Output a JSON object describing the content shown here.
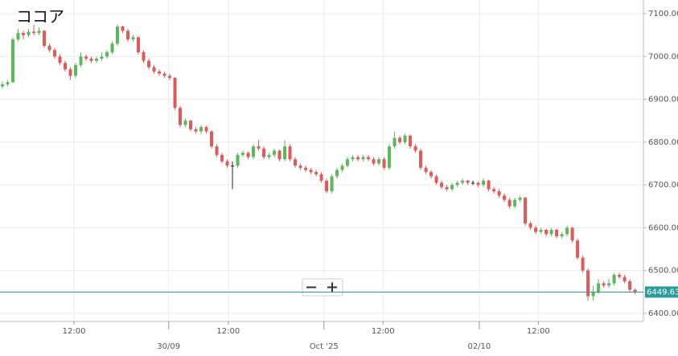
{
  "chart_data": {
    "type": "candlestick",
    "title": "ココア",
    "up_color": "#5cb85c",
    "down_color": "#e05a5a",
    "flat_color": "#222222",
    "current_color": "#2a9d9a",
    "current_price": 6449.63,
    "ylim": [
      6381,
      7132
    ],
    "yticks": [
      {
        "value": 6400,
        "label": "6400.00"
      },
      {
        "value": 6500,
        "label": "6500.00"
      },
      {
        "value": 6600,
        "label": "6600.00"
      },
      {
        "value": 6700,
        "label": "6700.00"
      },
      {
        "value": 6800,
        "label": "6800.00"
      },
      {
        "value": 6900,
        "label": "6900.00"
      },
      {
        "value": 7000,
        "label": "7000.00"
      },
      {
        "value": 7100,
        "label": "7100.00"
      }
    ],
    "xlim": [
      -0.46,
      122.6
    ],
    "xticks": [
      {
        "value": 13.7,
        "label": "12:00"
      },
      {
        "value": 31.8,
        "label": "30/09"
      },
      {
        "value": 43.2,
        "label": "12:00"
      },
      {
        "value": 61.5,
        "label": "Oct '25"
      },
      {
        "value": 72.8,
        "label": "12:00"
      },
      {
        "value": 91.2,
        "label": "02/10"
      },
      {
        "value": 102.5,
        "label": "12:00"
      }
    ],
    "grid": true,
    "ohlc": [
      [
        6930,
        6942,
        6925,
        6935
      ],
      [
        6935,
        6945,
        6930,
        6940
      ],
      [
        6940,
        7045,
        6938,
        7040
      ],
      [
        7040,
        7065,
        7035,
        7055
      ],
      [
        7055,
        7060,
        7040,
        7050
      ],
      [
        7050,
        7065,
        7045,
        7058
      ],
      [
        7058,
        7075,
        7050,
        7055
      ],
      [
        7055,
        7068,
        7050,
        7060
      ],
      [
        7060,
        7062,
        7020,
        7025
      ],
      [
        7025,
        7030,
        7010,
        7015
      ],
      [
        7015,
        7020,
        6995,
        7000
      ],
      [
        7000,
        7005,
        6980,
        6985
      ],
      [
        6985,
        6990,
        6965,
        6970
      ],
      [
        6970,
        6975,
        6945,
        6955
      ],
      [
        6955,
        6985,
        6950,
        6980
      ],
      [
        6980,
        7010,
        6975,
        7000
      ],
      [
        7000,
        7005,
        6990,
        6995
      ],
      [
        6995,
        7000,
        6985,
        6990
      ],
      [
        6990,
        7000,
        6985,
        6995
      ],
      [
        6995,
        7010,
        6990,
        7000
      ],
      [
        7000,
        7015,
        6995,
        7010
      ],
      [
        7010,
        7035,
        7005,
        7030
      ],
      [
        7030,
        7075,
        7025,
        7070
      ],
      [
        7070,
        7072,
        7055,
        7060
      ],
      [
        7060,
        7065,
        7035,
        7040
      ],
      [
        7040,
        7050,
        7035,
        7045
      ],
      [
        7045,
        7048,
        7005,
        7010
      ],
      [
        7010,
        7015,
        6985,
        6990
      ],
      [
        6990,
        6995,
        6970,
        6975
      ],
      [
        6975,
        6980,
        6960,
        6965
      ],
      [
        6965,
        6970,
        6955,
        6960
      ],
      [
        6960,
        6965,
        6950,
        6955
      ],
      [
        6955,
        6960,
        6945,
        6950
      ],
      [
        6950,
        6952,
        6875,
        6880
      ],
      [
        6880,
        6885,
        6835,
        6840
      ],
      [
        6840,
        6855,
        6835,
        6850
      ],
      [
        6850,
        6852,
        6825,
        6830
      ],
      [
        6830,
        6835,
        6820,
        6825
      ],
      [
        6825,
        6840,
        6820,
        6835
      ],
      [
        6835,
        6838,
        6820,
        6825
      ],
      [
        6825,
        6828,
        6785,
        6790
      ],
      [
        6790,
        6795,
        6765,
        6770
      ],
      [
        6770,
        6775,
        6750,
        6755
      ],
      [
        6755,
        6760,
        6740,
        6745
      ],
      [
        6745,
        6755,
        6690,
        6745
      ],
      [
        6745,
        6775,
        6740,
        6770
      ],
      [
        6770,
        6780,
        6765,
        6775
      ],
      [
        6775,
        6778,
        6760,
        6765
      ],
      [
        6765,
        6795,
        6760,
        6790
      ],
      [
        6790,
        6805,
        6780,
        6785
      ],
      [
        6785,
        6790,
        6760,
        6765
      ],
      [
        6765,
        6775,
        6760,
        6770
      ],
      [
        6770,
        6785,
        6765,
        6780
      ],
      [
        6780,
        6782,
        6755,
        6760
      ],
      [
        6760,
        6805,
        6755,
        6790
      ],
      [
        6790,
        6795,
        6755,
        6760
      ],
      [
        6760,
        6765,
        6740,
        6745
      ],
      [
        6745,
        6750,
        6735,
        6740
      ],
      [
        6740,
        6745,
        6730,
        6735
      ],
      [
        6735,
        6740,
        6725,
        6730
      ],
      [
        6730,
        6735,
        6720,
        6725
      ],
      [
        6725,
        6730,
        6705,
        6710
      ],
      [
        6710,
        6715,
        6680,
        6685
      ],
      [
        6685,
        6725,
        6680,
        6720
      ],
      [
        6720,
        6740,
        6715,
        6735
      ],
      [
        6735,
        6750,
        6730,
        6745
      ],
      [
        6745,
        6765,
        6740,
        6760
      ],
      [
        6760,
        6770,
        6755,
        6765
      ],
      [
        6765,
        6770,
        6755,
        6760
      ],
      [
        6760,
        6770,
        6755,
        6765
      ],
      [
        6765,
        6770,
        6755,
        6760
      ],
      [
        6760,
        6765,
        6745,
        6750
      ],
      [
        6750,
        6765,
        6745,
        6760
      ],
      [
        6760,
        6765,
        6735,
        6740
      ],
      [
        6740,
        6795,
        6735,
        6790
      ],
      [
        6790,
        6825,
        6785,
        6810
      ],
      [
        6810,
        6815,
        6795,
        6800
      ],
      [
        6800,
        6820,
        6795,
        6815
      ],
      [
        6815,
        6818,
        6785,
        6790
      ],
      [
        6790,
        6795,
        6775,
        6780
      ],
      [
        6780,
        6785,
        6735,
        6740
      ],
      [
        6740,
        6745,
        6725,
        6730
      ],
      [
        6730,
        6735,
        6715,
        6720
      ],
      [
        6720,
        6725,
        6700,
        6705
      ],
      [
        6705,
        6710,
        6690,
        6695
      ],
      [
        6695,
        6700,
        6685,
        6690
      ],
      [
        6690,
        6705,
        6685,
        6700
      ],
      [
        6700,
        6710,
        6695,
        6705
      ],
      [
        6705,
        6715,
        6700,
        6710
      ],
      [
        6710,
        6712,
        6700,
        6705
      ],
      [
        6705,
        6710,
        6700,
        6705
      ],
      [
        6705,
        6708,
        6695,
        6700
      ],
      [
        6700,
        6715,
        6695,
        6710
      ],
      [
        6710,
        6712,
        6685,
        6690
      ],
      [
        6690,
        6695,
        6680,
        6685
      ],
      [
        6685,
        6690,
        6670,
        6675
      ],
      [
        6675,
        6680,
        6660,
        6665
      ],
      [
        6665,
        6670,
        6645,
        6650
      ],
      [
        6650,
        6670,
        6645,
        6665
      ],
      [
        6665,
        6675,
        6660,
        6670
      ],
      [
        6670,
        6672,
        6605,
        6610
      ],
      [
        6610,
        6615,
        6595,
        6600
      ],
      [
        6600,
        6605,
        6585,
        6590
      ],
      [
        6590,
        6600,
        6585,
        6595
      ],
      [
        6595,
        6598,
        6580,
        6585
      ],
      [
        6585,
        6600,
        6580,
        6595
      ],
      [
        6595,
        6598,
        6575,
        6580
      ],
      [
        6580,
        6590,
        6575,
        6585
      ],
      [
        6585,
        6605,
        6580,
        6600
      ],
      [
        6600,
        6602,
        6565,
        6570
      ],
      [
        6570,
        6575,
        6525,
        6530
      ],
      [
        6530,
        6535,
        6495,
        6500
      ],
      [
        6500,
        6505,
        6430,
        6440
      ],
      [
        6440,
        6465,
        6430,
        6450
      ],
      [
        6450,
        6480,
        6445,
        6470
      ],
      [
        6470,
        6475,
        6460,
        6465
      ],
      [
        6465,
        6480,
        6460,
        6470
      ],
      [
        6470,
        6495,
        6465,
        6490
      ],
      [
        6490,
        6495,
        6480,
        6485
      ],
      [
        6485,
        6490,
        6470,
        6475
      ],
      [
        6475,
        6480,
        6450,
        6455
      ],
      [
        6455,
        6458,
        6445,
        6449.63
      ]
    ]
  }
}
